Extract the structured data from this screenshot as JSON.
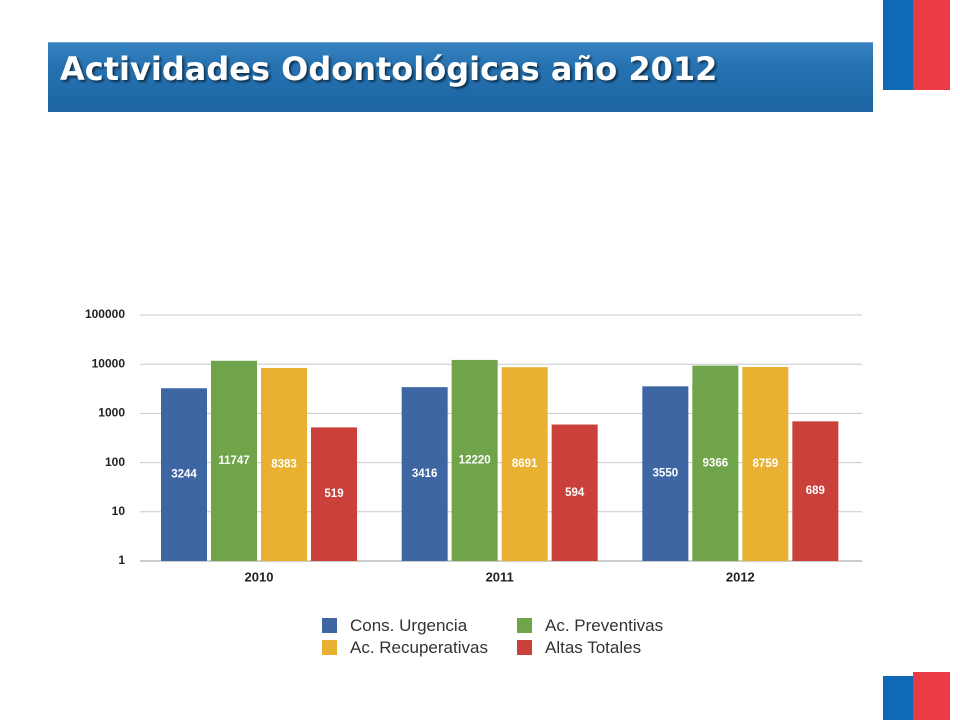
{
  "slide": {
    "title": "Actividades Odontológicas año 2012",
    "flag_blue": "#0f69b4",
    "flag_red": "#eb3c46"
  },
  "chart_data": {
    "type": "bar",
    "categories": [
      "2010",
      "2011",
      "2012"
    ],
    "series": [
      {
        "name": "Cons. Urgencia",
        "values": [
          3244,
          3416,
          3550
        ],
        "color": "#3d66a3"
      },
      {
        "name": "Ac. Preventivas",
        "values": [
          11747,
          12220,
          9366
        ],
        "color": "#70a44b"
      },
      {
        "name": "Ac. Recuperativas",
        "values": [
          8383,
          8691,
          8759
        ],
        "color": "#e9b131"
      },
      {
        "name": "Altas Totales",
        "values": [
          519,
          594,
          689
        ],
        "color": "#c9413a"
      }
    ],
    "yscale": "log",
    "ylim": [
      1,
      100000
    ],
    "yticks": [
      100000,
      10000,
      1000,
      100,
      10,
      1
    ],
    "data_labels": true,
    "grid": true,
    "legend": "bottom"
  }
}
